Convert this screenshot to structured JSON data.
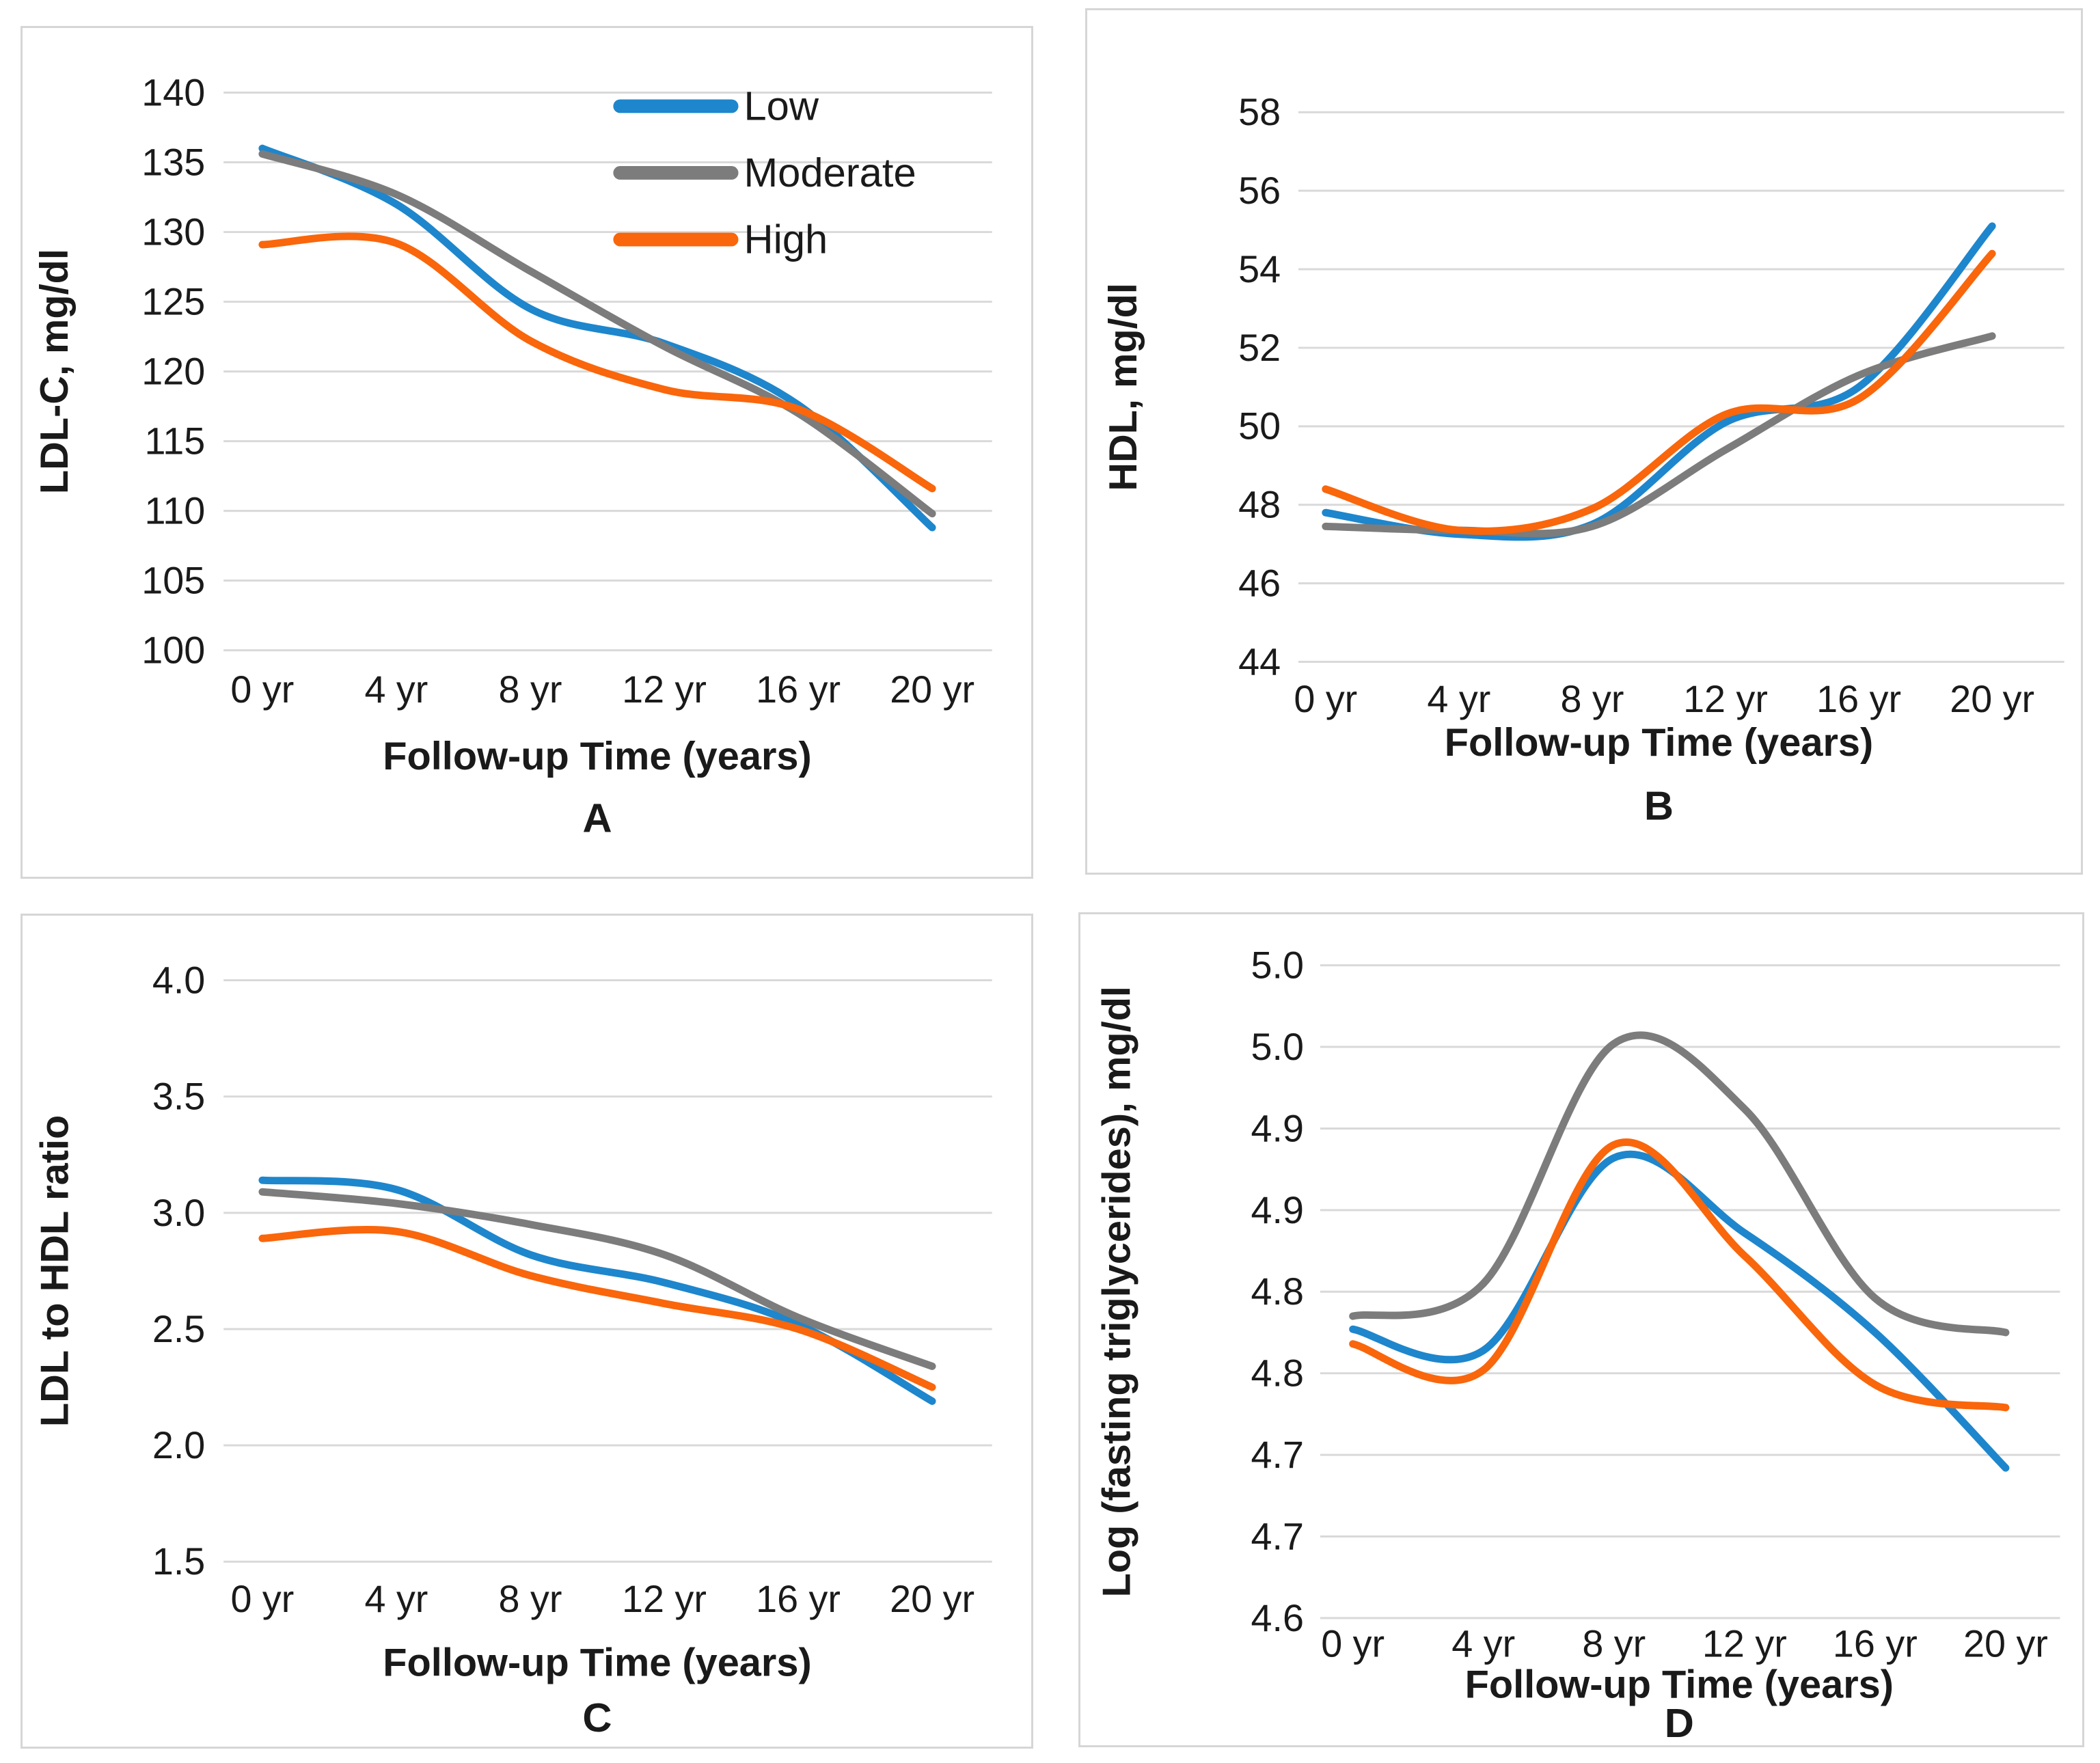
{
  "figure": {
    "colors": {
      "low": "#1E86CC",
      "moderate": "#7C7C7C",
      "high": "#F9660B",
      "grid": "#D9D9D9",
      "text": "#1A1A1A",
      "border": "#D6D6D6"
    },
    "legend": {
      "position": "top-right-panel-A",
      "entries": [
        {
          "label": "Low",
          "series": "low"
        },
        {
          "label": "Moderate",
          "series": "moderate"
        },
        {
          "label": "High",
          "series": "high"
        }
      ]
    }
  },
  "chart_data": [
    {
      "id": "A",
      "type": "line",
      "panel_label": "A",
      "ylabel": "LDL-C, mg/dl",
      "xlabel": "Follow-up Time (years)",
      "categories": [
        "0 yr",
        "4 yr",
        "8 yr",
        "12 yr",
        "16 yr",
        "20 yr"
      ],
      "x_years": [
        0,
        4,
        8,
        12,
        16,
        20
      ],
      "ylim": [
        100,
        140
      ],
      "grid": true,
      "legend": true,
      "yticks": [
        "140",
        "135",
        "130",
        "125",
        "120",
        "115",
        "110",
        "105",
        "100"
      ],
      "ytick_values": [
        140,
        135,
        130,
        125,
        120,
        115,
        110,
        105,
        100
      ],
      "series": [
        {
          "name": "Low",
          "color": "low",
          "values": [
            136.0,
            132.0,
            124.5,
            122.0,
            117.6,
            108.8
          ]
        },
        {
          "name": "Moderate",
          "color": "moderate",
          "values": [
            135.6,
            132.7,
            127.2,
            121.8,
            117.0,
            109.8
          ]
        },
        {
          "name": "High",
          "color": "high",
          "values": [
            129.1,
            129.2,
            122.2,
            118.7,
            117.3,
            111.6
          ]
        }
      ]
    },
    {
      "id": "B",
      "type": "line",
      "panel_label": "B",
      "ylabel": "HDL, mg/dl",
      "xlabel": "Follow-up Time (years)",
      "categories": [
        "0 yr",
        "4 yr",
        "8 yr",
        "12 yr",
        "16 yr",
        "20 yr"
      ],
      "x_years": [
        0,
        4,
        8,
        12,
        16,
        20
      ],
      "ylim": [
        44,
        58
      ],
      "grid": true,
      "legend": false,
      "yticks": [
        "58",
        "56",
        "54",
        "52",
        "50",
        "48",
        "46",
        "44"
      ],
      "ytick_values": [
        58,
        56,
        54,
        52,
        50,
        48,
        46,
        44
      ],
      "series": [
        {
          "name": "Low",
          "color": "low",
          "values": [
            47.8,
            47.25,
            47.5,
            50.1,
            51.0,
            55.1
          ]
        },
        {
          "name": "Moderate",
          "color": "moderate",
          "values": [
            47.45,
            47.35,
            47.45,
            49.4,
            51.3,
            52.3
          ]
        },
        {
          "name": "High",
          "color": "high",
          "values": [
            48.4,
            47.35,
            47.9,
            50.3,
            50.7,
            54.4
          ]
        }
      ]
    },
    {
      "id": "C",
      "type": "line",
      "panel_label": "C",
      "ylabel": "LDL to HDL ratio",
      "xlabel": "Follow-up Time (years)",
      "categories": [
        "0 yr",
        "4 yr",
        "8 yr",
        "12 yr",
        "16 yr",
        "20 yr"
      ],
      "x_years": [
        0,
        4,
        8,
        12,
        16,
        20
      ],
      "ylim": [
        1.5,
        4.0
      ],
      "grid": true,
      "legend": false,
      "yticks": [
        "4.0",
        "3.5",
        "3.0",
        "2.5",
        "2.0",
        "1.5"
      ],
      "ytick_values": [
        4.0,
        3.5,
        3.0,
        2.5,
        2.0,
        1.5
      ],
      "series": [
        {
          "name": "Low",
          "color": "low",
          "values": [
            3.14,
            3.1,
            2.82,
            2.7,
            2.52,
            2.19
          ]
        },
        {
          "name": "Moderate",
          "color": "moderate",
          "values": [
            3.09,
            3.04,
            2.95,
            2.82,
            2.55,
            2.34
          ]
        },
        {
          "name": "High",
          "color": "high",
          "values": [
            2.89,
            2.92,
            2.73,
            2.61,
            2.5,
            2.25
          ]
        }
      ]
    },
    {
      "id": "D",
      "type": "line",
      "panel_label": "D",
      "ylabel": "Log (fasting triglycerides), mg/dl",
      "xlabel": "Follow-up Time (years)",
      "categories": [
        "0 yr",
        "4 yr",
        "8 yr",
        "12 yr",
        "16 yr",
        "20 yr"
      ],
      "x_years": [
        0,
        4,
        8,
        12,
        16,
        20
      ],
      "ylim": [
        4.6,
        5.0
      ],
      "grid": true,
      "legend": false,
      "yticks": [
        "5.0",
        "5.0",
        "4.9",
        "4.9",
        "4.8",
        "4.8",
        "4.7",
        "4.7",
        "4.6"
      ],
      "ytick_values": [
        5.0,
        4.95,
        4.9,
        4.85,
        4.8,
        4.75,
        4.7,
        4.65,
        4.6
      ],
      "series": [
        {
          "name": "Low",
          "color": "low",
          "values": [
            4.777,
            4.764,
            4.882,
            4.836,
            4.775,
            4.692
          ]
        },
        {
          "name": "Moderate",
          "color": "moderate",
          "values": [
            4.785,
            4.805,
            4.952,
            4.912,
            4.796,
            4.775
          ]
        },
        {
          "name": "High",
          "color": "high",
          "values": [
            4.768,
            4.752,
            4.89,
            4.822,
            4.743,
            4.729
          ]
        }
      ]
    }
  ]
}
